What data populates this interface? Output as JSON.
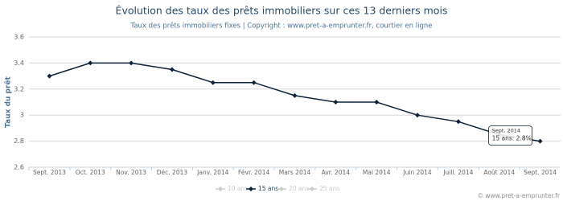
{
  "chart_data": {
    "type": "line",
    "title": "Évolution des taux des prêts immobiliers sur ces 13 derniers mois",
    "subtitle": "Taux des prêts immobiliers fixes | Copyright : www.pret-a-emprunter.fr, courtier en ligne",
    "y_label": "Taux du prêt",
    "categories": [
      "Sept. 2013",
      "Oct. 2013",
      "Nov. 2013",
      "Déc. 2013",
      "Janv. 2014",
      "Févr. 2014",
      "Mars 2014",
      "Avr. 2014",
      "Mai 2014",
      "Juin 2014",
      "Juill. 2014",
      "Août 2014",
      "Sept. 2014"
    ],
    "series": [
      {
        "name": "15 ans",
        "color": "#0d233a",
        "values": [
          3.3,
          3.4,
          3.4,
          3.35,
          3.25,
          3.25,
          3.15,
          3.1,
          3.1,
          3.0,
          2.95,
          2.85,
          2.8
        ]
      }
    ],
    "legend_items": [
      "10 ans",
      "15 ans",
      "20 ans",
      "25 ans"
    ],
    "legend_active": 1,
    "ylim": [
      2.6,
      3.6
    ],
    "yticks": [
      2.6,
      2.8,
      3,
      3.2,
      3.4,
      3.6
    ],
    "grid": true,
    "tooltip": {
      "title": "Sept. 2014",
      "text": "15 ans: 2.8%"
    },
    "credit": "© www.pret-a-emprunter.fr"
  }
}
